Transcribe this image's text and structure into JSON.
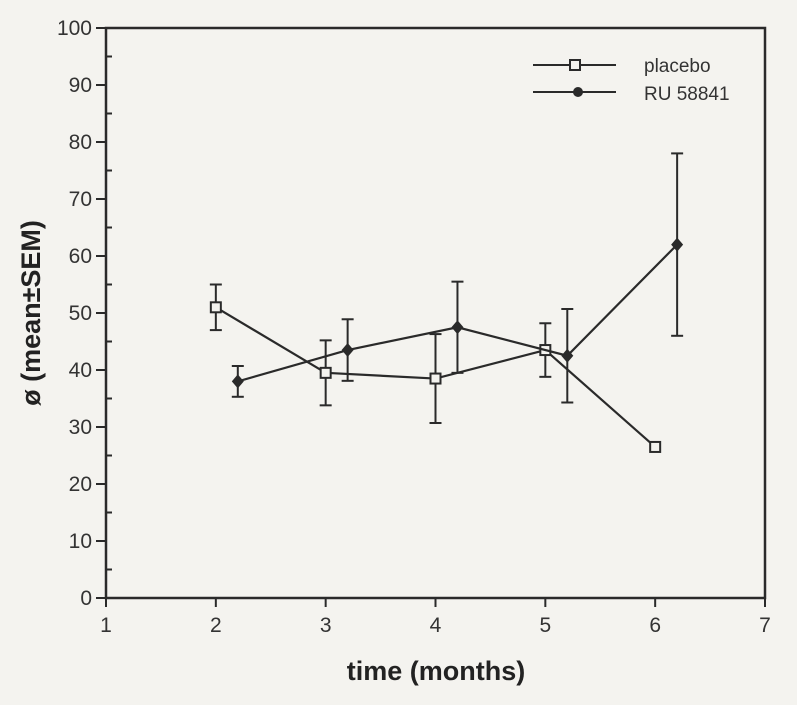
{
  "chart_data": {
    "type": "line",
    "title": "",
    "xlabel": "time (months)",
    "ylabel": "ø (mean±SEM)",
    "xlim": [
      1,
      7
    ],
    "ylim": [
      0,
      100
    ],
    "xticks": [
      1,
      2,
      3,
      4,
      5,
      6,
      7
    ],
    "yticks": [
      0,
      10,
      20,
      30,
      40,
      50,
      60,
      70,
      80,
      90,
      100
    ],
    "grid": false,
    "legend_position": "top-right",
    "series": [
      {
        "name": "placebo",
        "marker": "open-square",
        "x": [
          2,
          3,
          4,
          5,
          6
        ],
        "y": [
          51,
          39.5,
          38.5,
          43.5,
          26.5
        ],
        "sem": [
          4,
          5.7,
          7.8,
          4.7,
          0
        ]
      },
      {
        "name": "RU 58841",
        "marker": "filled-diamond",
        "x": [
          2.2,
          3.2,
          4.2,
          5.2,
          6.2
        ],
        "y": [
          38,
          43.5,
          47.5,
          42.5,
          62
        ],
        "sem": [
          2.7,
          5.4,
          8,
          8.2,
          16
        ]
      }
    ]
  },
  "colors": {
    "line": "#2a2a2a",
    "background": "#f4f3ef"
  }
}
